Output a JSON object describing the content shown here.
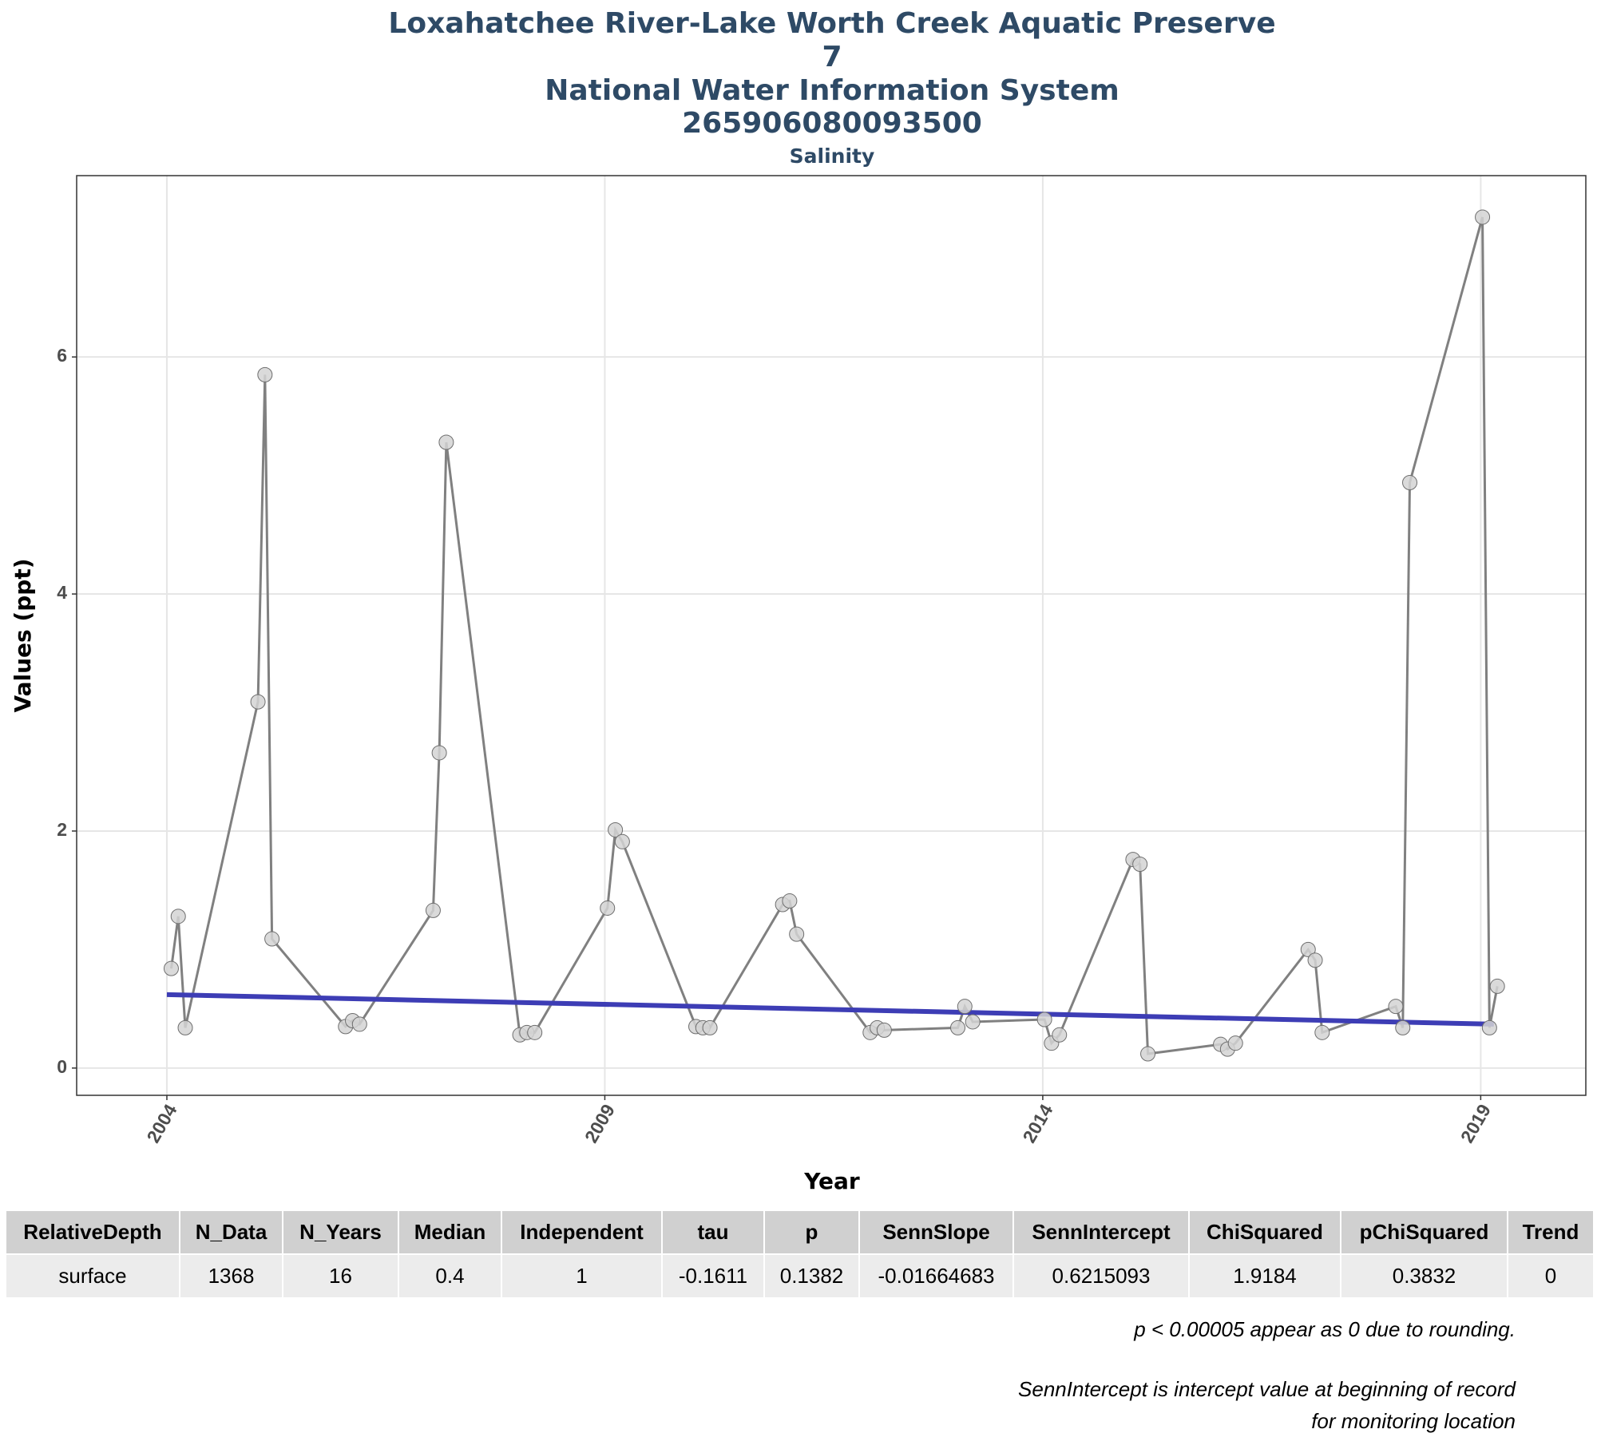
{
  "chart_data": {
    "type": "line",
    "title": [
      "Loxahatchee River-Lake Worth Creek Aquatic Preserve",
      "7",
      "National Water Information System",
      "265906080093500"
    ],
    "subtitle": "Salinity",
    "x_label": "Year",
    "y_label": "Values (ppt)",
    "xlim": [
      2002.97,
      2020.2
    ],
    "ylim": [
      -0.23,
      7.53
    ],
    "xticks": [
      2004,
      2009,
      2014,
      2019
    ],
    "yticks": [
      0,
      2,
      4,
      6
    ],
    "grid": true,
    "series": [
      {
        "color": "#808080",
        "x": [
          2004.05,
          2004.13,
          2004.21,
          2005.04,
          2005.12,
          2005.2,
          2006.04,
          2006.12,
          2006.2,
          2007.04,
          2007.11,
          2007.19,
          2008.03,
          2008.11,
          2008.2,
          2009.03,
          2009.12,
          2009.2,
          2010.04,
          2010.12,
          2010.2,
          2011.03,
          2011.11,
          2011.19,
          2012.03,
          2012.11,
          2012.19,
          2013.03,
          2013.11,
          2013.2,
          2014.02,
          2014.1,
          2014.19,
          2015.03,
          2015.11,
          2015.2,
          2016.03,
          2016.11,
          2016.2,
          2017.03,
          2017.11,
          2017.19,
          2018.03,
          2018.11,
          2018.19,
          2019.02,
          2019.1,
          2019.19
        ],
        "values": [
          0.84,
          1.28,
          0.34,
          3.09,
          5.85,
          1.09,
          0.35,
          0.4,
          0.37,
          1.33,
          2.66,
          5.28,
          0.28,
          0.3,
          0.3,
          1.35,
          2.01,
          1.91,
          0.35,
          0.34,
          0.34,
          1.38,
          1.41,
          1.13,
          0.3,
          0.34,
          0.32,
          0.34,
          0.52,
          0.39,
          0.41,
          0.21,
          0.28,
          1.76,
          1.72,
          0.12,
          0.2,
          0.16,
          0.21,
          1.0,
          0.91,
          0.3,
          0.52,
          0.34,
          4.94,
          7.18,
          0.34,
          0.69
        ]
      }
    ],
    "trend": {
      "color": "#3d3db5",
      "x": [
        2004,
        2019.15
      ],
      "values": [
        0.62,
        0.37
      ]
    }
  },
  "table": {
    "header": [
      "RelativeDepth",
      "N_Data",
      "N_Years",
      "Median",
      "Independent",
      "tau",
      "p",
      "SennSlope",
      "SennIntercept",
      "ChiSquared",
      "pChiSquared",
      "Trend"
    ],
    "rows": [
      [
        "surface",
        "1368",
        "16",
        "0.4",
        "1",
        "-0.1611",
        "0.1382",
        "-0.01664683",
        "0.6215093",
        "1.9184",
        "0.3832",
        "0"
      ]
    ]
  },
  "notes": [
    "p < 0.00005 appear as 0 due to rounding.",
    "SennIntercept is intercept value at beginning of record for monitoring location"
  ]
}
